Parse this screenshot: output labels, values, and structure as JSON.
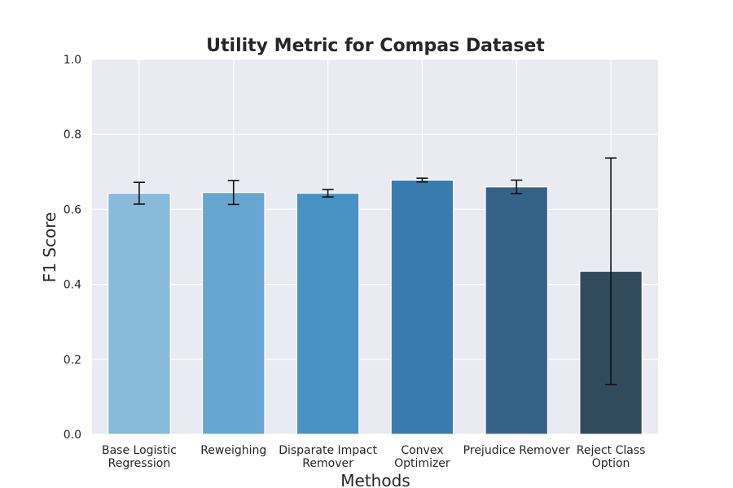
{
  "chart_data": {
    "type": "bar",
    "title": "Utility Metric for Compas Dataset",
    "xlabel": "Methods",
    "ylabel": "F1 Score",
    "ylim": [
      0,
      1.0
    ],
    "yticks": [
      "0.0",
      "0.2",
      "0.4",
      "0.6",
      "0.8",
      "1.0"
    ],
    "grid": true,
    "categories": [
      [
        "Base Logistic",
        "Regression"
      ],
      [
        "Reweighing"
      ],
      [
        "Disparate Impact",
        "Remover"
      ],
      [
        "Convex",
        "Optimizer"
      ],
      [
        "Prejudice Remover"
      ],
      [
        "Reject Class",
        "Option"
      ]
    ],
    "values": [
      0.643,
      0.645,
      0.643,
      0.678,
      0.66,
      0.435
    ],
    "errors": [
      0.029,
      0.032,
      0.01,
      0.005,
      0.018,
      0.302
    ],
    "colors": [
      "#88bad9",
      "#66a6d1",
      "#4891c5",
      "#387bae",
      "#356387",
      "#324b5c"
    ],
    "background": "#eaeaf2",
    "grid_color": "#ffffff"
  }
}
